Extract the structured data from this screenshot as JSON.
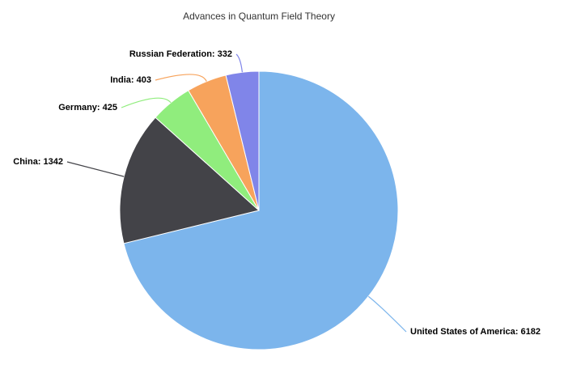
{
  "chart_data": {
    "type": "pie",
    "title": "Advances in Quantum Field Theory",
    "values": [
      6182,
      1342,
      425,
      403,
      332
    ],
    "value_labels": [
      "United States of America: 6182",
      "China: 1342",
      "Germany: 425",
      "India: 403",
      "Russian Federation: 332"
    ],
    "colors": [
      "#7cb5ec",
      "#434348",
      "#90ed7d",
      "#f7a35c",
      "#8085e9"
    ]
  }
}
